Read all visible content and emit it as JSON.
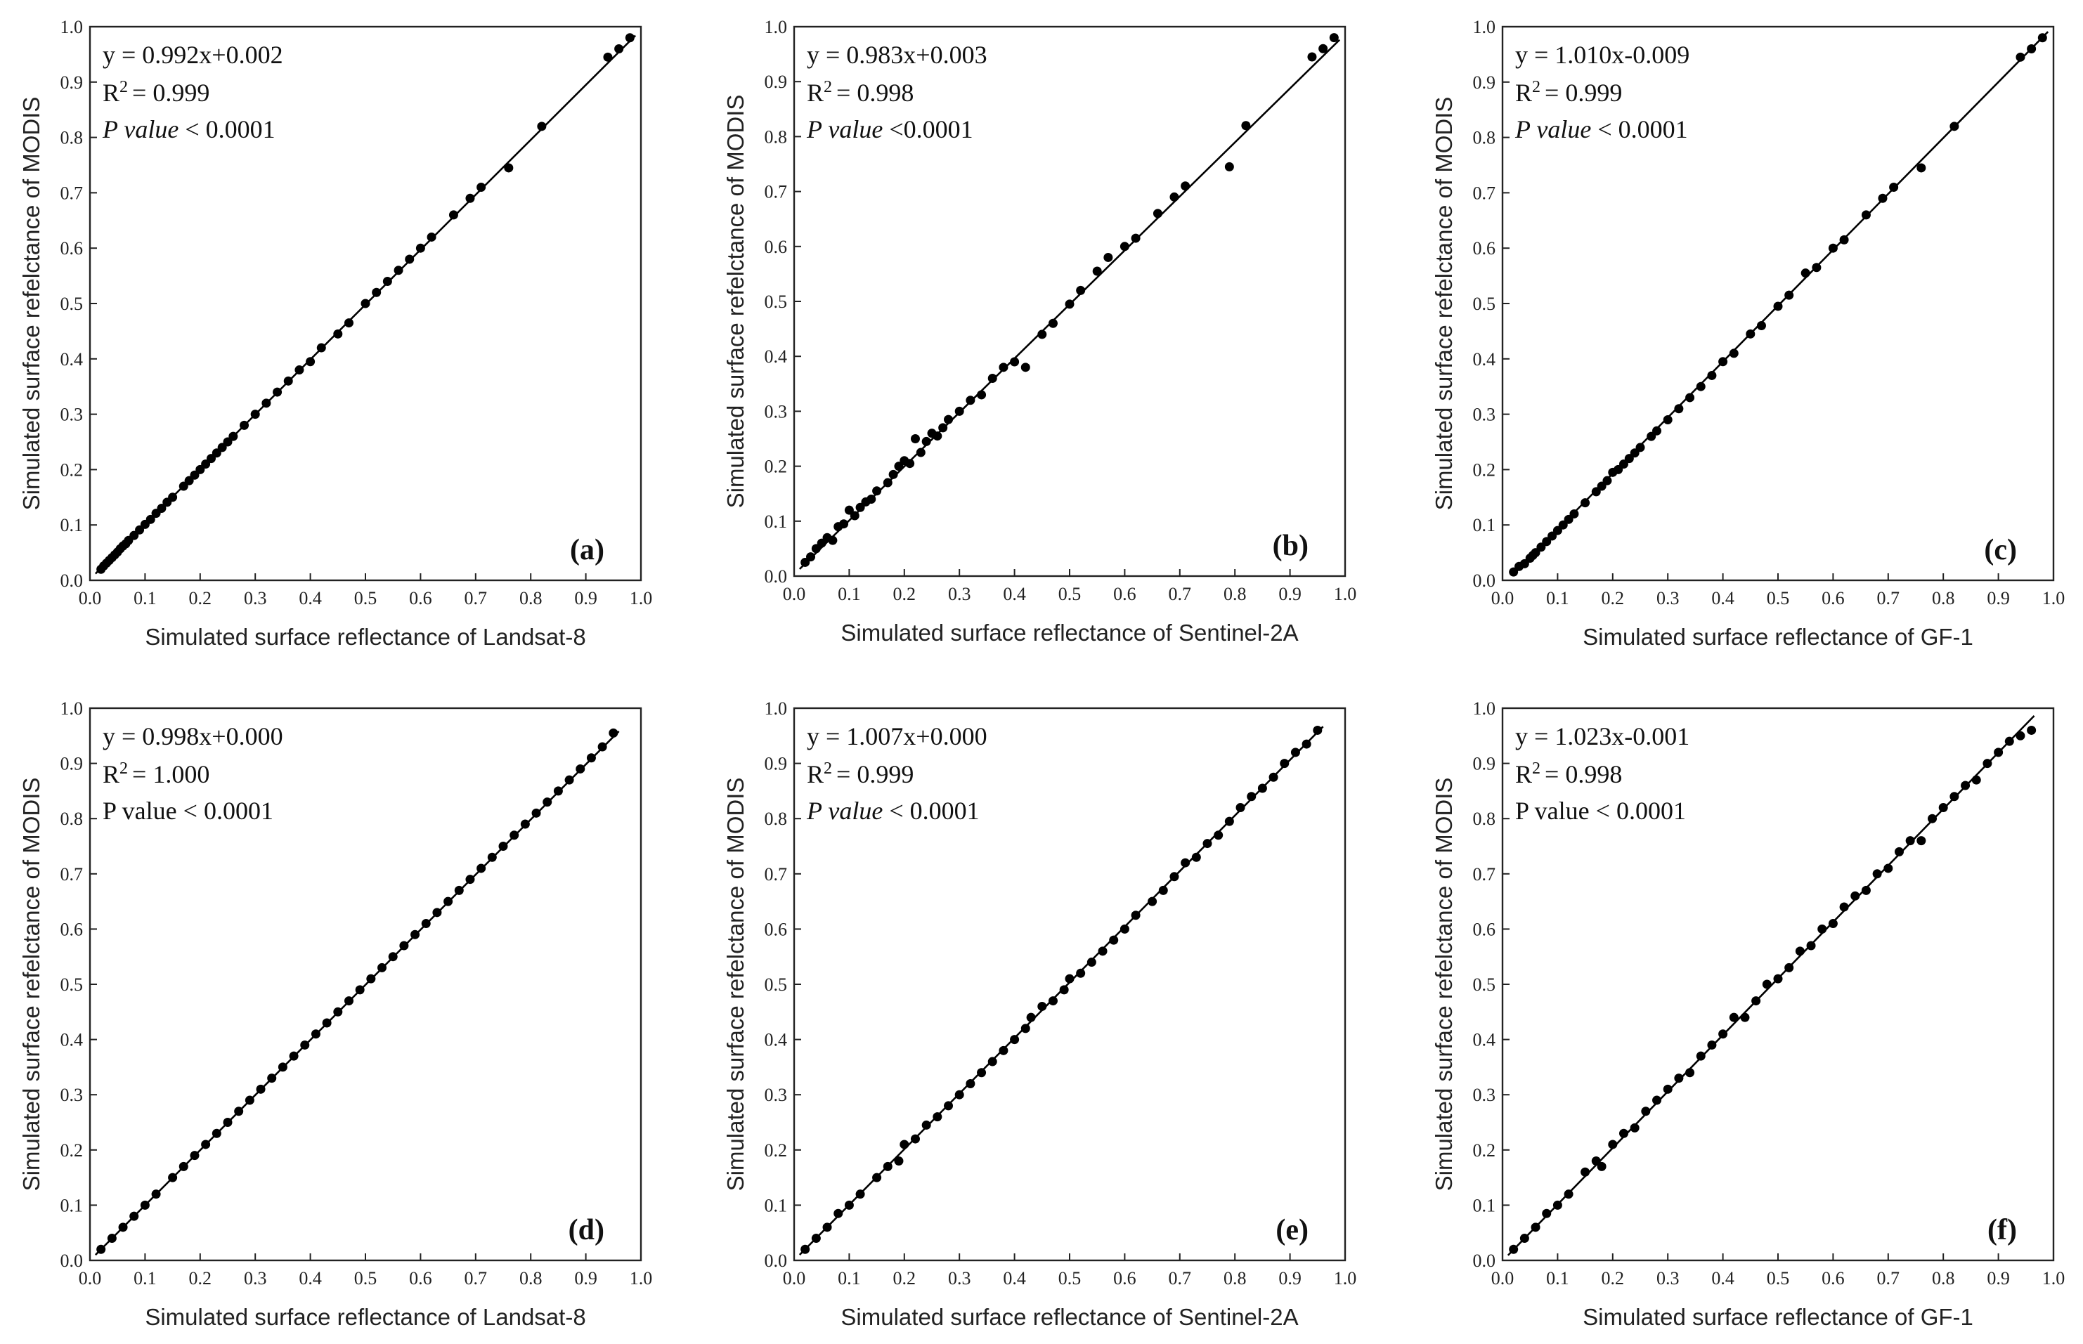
{
  "figure": {
    "ytitle": "Simulated surface refelctance of MODIS",
    "xticks": [
      "0.0",
      "0.1",
      "0.2",
      "0.3",
      "0.4",
      "0.5",
      "0.6",
      "0.7",
      "0.8",
      "0.9",
      "1.0"
    ],
    "yticks": [
      "0.0",
      "0.1",
      "0.2",
      "0.3",
      "0.4",
      "0.5",
      "0.6",
      "0.7",
      "0.8",
      "0.9",
      "1.0"
    ],
    "r2_label": "R",
    "r2_sup": "2"
  },
  "chart_data": [
    {
      "type": "scatter",
      "label": "(a)",
      "xlabel": "Simulated surface reflectance of Landsat-8",
      "ylabel": "Simulated surface refelctance of MODIS",
      "xlim": [
        0,
        1
      ],
      "ylim": [
        0,
        1
      ],
      "equation": "y = 0.992x+0.002",
      "r2_value": "= 0.999",
      "p_word": "P value",
      "p_rest": " < 0.0001",
      "p_italic": true,
      "fit": {
        "slope": 0.992,
        "intercept": 0.002,
        "x_range": [
          0.01,
          0.99
        ]
      },
      "x": [
        0.02,
        0.025,
        0.03,
        0.035,
        0.04,
        0.045,
        0.05,
        0.055,
        0.06,
        0.065,
        0.07,
        0.08,
        0.09,
        0.1,
        0.11,
        0.12,
        0.13,
        0.14,
        0.15,
        0.17,
        0.18,
        0.19,
        0.2,
        0.21,
        0.22,
        0.23,
        0.24,
        0.25,
        0.26,
        0.28,
        0.3,
        0.32,
        0.34,
        0.36,
        0.38,
        0.4,
        0.42,
        0.45,
        0.47,
        0.5,
        0.52,
        0.54,
        0.56,
        0.58,
        0.6,
        0.62,
        0.66,
        0.69,
        0.71,
        0.76,
        0.82,
        0.94,
        0.96,
        0.98
      ],
      "y": [
        0.02,
        0.026,
        0.031,
        0.036,
        0.041,
        0.046,
        0.051,
        0.057,
        0.062,
        0.066,
        0.072,
        0.081,
        0.091,
        0.101,
        0.11,
        0.121,
        0.13,
        0.141,
        0.15,
        0.17,
        0.18,
        0.19,
        0.2,
        0.21,
        0.22,
        0.23,
        0.24,
        0.25,
        0.26,
        0.28,
        0.3,
        0.32,
        0.34,
        0.36,
        0.38,
        0.395,
        0.42,
        0.445,
        0.465,
        0.5,
        0.52,
        0.54,
        0.56,
        0.58,
        0.6,
        0.62,
        0.66,
        0.69,
        0.71,
        0.745,
        0.82,
        0.945,
        0.96,
        0.98
      ]
    },
    {
      "type": "scatter",
      "label": "(b)",
      "xlabel": "Simulated surface reflectance of Sentinel-2A",
      "ylabel": "Simulated surface refelctance of MODIS",
      "xlim": [
        0,
        1
      ],
      "ylim": [
        0,
        1
      ],
      "equation": "y = 0.983x+0.003",
      "r2_value": "= 0.998",
      "p_word": "P value",
      "p_rest": " <0.0001",
      "p_italic": true,
      "fit": {
        "slope": 0.983,
        "intercept": 0.003,
        "x_range": [
          0.01,
          0.99
        ]
      },
      "x": [
        0.02,
        0.03,
        0.04,
        0.05,
        0.06,
        0.07,
        0.08,
        0.09,
        0.1,
        0.11,
        0.12,
        0.13,
        0.14,
        0.15,
        0.17,
        0.18,
        0.19,
        0.2,
        0.21,
        0.22,
        0.23,
        0.24,
        0.25,
        0.26,
        0.27,
        0.28,
        0.3,
        0.32,
        0.34,
        0.36,
        0.38,
        0.4,
        0.42,
        0.45,
        0.47,
        0.5,
        0.52,
        0.55,
        0.57,
        0.6,
        0.62,
        0.66,
        0.69,
        0.71,
        0.79,
        0.82,
        0.94,
        0.96,
        0.98
      ],
      "y": [
        0.025,
        0.035,
        0.05,
        0.06,
        0.07,
        0.065,
        0.09,
        0.095,
        0.12,
        0.11,
        0.125,
        0.135,
        0.14,
        0.155,
        0.17,
        0.185,
        0.2,
        0.21,
        0.205,
        0.25,
        0.225,
        0.245,
        0.26,
        0.255,
        0.27,
        0.285,
        0.3,
        0.32,
        0.33,
        0.36,
        0.38,
        0.39,
        0.38,
        0.44,
        0.46,
        0.495,
        0.52,
        0.555,
        0.58,
        0.6,
        0.615,
        0.66,
        0.69,
        0.71,
        0.745,
        0.82,
        0.945,
        0.96,
        0.98
      ]
    },
    {
      "type": "scatter",
      "label": "(c)",
      "xlabel": "Simulated surface reflectance of GF-1",
      "ylabel": "Simulated surface refelctance of MODIS",
      "xlim": [
        0,
        1
      ],
      "ylim": [
        0,
        1
      ],
      "equation": "y = 1.010x-0.009",
      "r2_value": "= 0.999",
      "p_word": "P value",
      "p_rest": " < 0.0001",
      "p_italic": true,
      "fit": {
        "slope": 1.01,
        "intercept": -0.009,
        "x_range": [
          0.02,
          0.99
        ]
      },
      "x": [
        0.02,
        0.03,
        0.04,
        0.05,
        0.055,
        0.06,
        0.07,
        0.08,
        0.09,
        0.1,
        0.11,
        0.12,
        0.13,
        0.15,
        0.17,
        0.18,
        0.19,
        0.2,
        0.21,
        0.22,
        0.23,
        0.24,
        0.25,
        0.27,
        0.28,
        0.3,
        0.32,
        0.34,
        0.36,
        0.38,
        0.4,
        0.42,
        0.45,
        0.47,
        0.5,
        0.52,
        0.55,
        0.57,
        0.6,
        0.62,
        0.66,
        0.69,
        0.71,
        0.76,
        0.82,
        0.94,
        0.96,
        0.98
      ],
      "y": [
        0.015,
        0.025,
        0.03,
        0.04,
        0.045,
        0.05,
        0.06,
        0.07,
        0.08,
        0.09,
        0.1,
        0.11,
        0.12,
        0.14,
        0.16,
        0.17,
        0.18,
        0.195,
        0.2,
        0.21,
        0.22,
        0.23,
        0.24,
        0.26,
        0.27,
        0.29,
        0.31,
        0.33,
        0.35,
        0.37,
        0.395,
        0.41,
        0.445,
        0.46,
        0.495,
        0.515,
        0.555,
        0.565,
        0.6,
        0.615,
        0.66,
        0.69,
        0.71,
        0.745,
        0.82,
        0.945,
        0.96,
        0.98
      ]
    },
    {
      "type": "scatter",
      "label": "(d)",
      "xlabel": "Simulated surface reflectance of Landsat-8",
      "ylabel": "Simulated surface refelctance of MODIS",
      "xlim": [
        0,
        1
      ],
      "ylim": [
        0,
        1
      ],
      "equation": "y = 0.998x+0.000",
      "r2_value": "= 1.000",
      "p_word": "P value",
      "p_rest": " < 0.0001",
      "p_italic": false,
      "fit": {
        "slope": 0.998,
        "intercept": 0.0,
        "x_range": [
          0.01,
          0.96
        ]
      },
      "x": [
        0.02,
        0.04,
        0.06,
        0.08,
        0.1,
        0.12,
        0.15,
        0.17,
        0.19,
        0.21,
        0.23,
        0.25,
        0.27,
        0.29,
        0.31,
        0.33,
        0.35,
        0.37,
        0.39,
        0.41,
        0.43,
        0.45,
        0.47,
        0.49,
        0.51,
        0.53,
        0.55,
        0.57,
        0.59,
        0.61,
        0.63,
        0.65,
        0.67,
        0.69,
        0.71,
        0.73,
        0.75,
        0.77,
        0.79,
        0.81,
        0.83,
        0.85,
        0.87,
        0.89,
        0.91,
        0.93,
        0.95
      ],
      "y": [
        0.02,
        0.04,
        0.06,
        0.08,
        0.1,
        0.12,
        0.15,
        0.17,
        0.19,
        0.21,
        0.23,
        0.25,
        0.27,
        0.29,
        0.31,
        0.33,
        0.35,
        0.37,
        0.39,
        0.41,
        0.43,
        0.45,
        0.47,
        0.49,
        0.51,
        0.53,
        0.55,
        0.57,
        0.59,
        0.61,
        0.63,
        0.65,
        0.67,
        0.69,
        0.71,
        0.73,
        0.75,
        0.77,
        0.79,
        0.81,
        0.83,
        0.85,
        0.87,
        0.89,
        0.91,
        0.93,
        0.955
      ]
    },
    {
      "type": "scatter",
      "label": "(e)",
      "xlabel": "Simulated surface reflectance of Sentinel-2A",
      "ylabel": "Simulated surface refelctance of MODIS",
      "xlim": [
        0,
        1
      ],
      "ylim": [
        0,
        1
      ],
      "equation": "y = 1.007x+0.000",
      "r2_value": "= 0.999",
      "p_word": "P value",
      "p_rest": " < 0.0001",
      "p_italic": true,
      "fit": {
        "slope": 1.007,
        "intercept": 0.0,
        "x_range": [
          0.01,
          0.96
        ]
      },
      "x": [
        0.02,
        0.04,
        0.06,
        0.08,
        0.1,
        0.12,
        0.15,
        0.17,
        0.19,
        0.2,
        0.22,
        0.24,
        0.26,
        0.28,
        0.3,
        0.32,
        0.34,
        0.36,
        0.38,
        0.4,
        0.42,
        0.43,
        0.45,
        0.47,
        0.49,
        0.5,
        0.52,
        0.54,
        0.56,
        0.58,
        0.6,
        0.62,
        0.65,
        0.67,
        0.69,
        0.71,
        0.73,
        0.75,
        0.77,
        0.79,
        0.81,
        0.83,
        0.85,
        0.87,
        0.89,
        0.91,
        0.93,
        0.95
      ],
      "y": [
        0.02,
        0.04,
        0.06,
        0.085,
        0.1,
        0.12,
        0.15,
        0.17,
        0.18,
        0.21,
        0.22,
        0.245,
        0.26,
        0.28,
        0.3,
        0.32,
        0.34,
        0.36,
        0.38,
        0.4,
        0.42,
        0.44,
        0.46,
        0.47,
        0.49,
        0.51,
        0.52,
        0.54,
        0.56,
        0.58,
        0.6,
        0.625,
        0.65,
        0.67,
        0.695,
        0.72,
        0.73,
        0.755,
        0.77,
        0.795,
        0.82,
        0.84,
        0.855,
        0.875,
        0.9,
        0.92,
        0.935,
        0.96
      ]
    },
    {
      "type": "scatter",
      "label": "(f)",
      "xlabel": "Simulated surface reflectance of GF-1",
      "ylabel": "Simulated surface refelctance of MODIS",
      "xlim": [
        0,
        1
      ],
      "ylim": [
        0,
        1
      ],
      "equation": "y = 1.023x-0.001",
      "r2_value": "= 0.998",
      "p_word": "P value",
      "p_rest": " < 0.0001",
      "p_italic": false,
      "fit": {
        "slope": 1.023,
        "intercept": -0.001,
        "x_range": [
          0.01,
          0.965
        ]
      },
      "x": [
        0.02,
        0.04,
        0.06,
        0.08,
        0.1,
        0.12,
        0.15,
        0.17,
        0.18,
        0.2,
        0.22,
        0.24,
        0.26,
        0.28,
        0.3,
        0.32,
        0.34,
        0.36,
        0.38,
        0.4,
        0.42,
        0.44,
        0.46,
        0.48,
        0.5,
        0.52,
        0.54,
        0.56,
        0.58,
        0.6,
        0.62,
        0.64,
        0.66,
        0.68,
        0.7,
        0.72,
        0.74,
        0.76,
        0.78,
        0.8,
        0.82,
        0.84,
        0.86,
        0.88,
        0.9,
        0.92,
        0.94,
        0.96
      ],
      "y": [
        0.02,
        0.04,
        0.06,
        0.085,
        0.1,
        0.12,
        0.16,
        0.18,
        0.17,
        0.21,
        0.23,
        0.24,
        0.27,
        0.29,
        0.31,
        0.33,
        0.34,
        0.37,
        0.39,
        0.41,
        0.44,
        0.44,
        0.47,
        0.5,
        0.51,
        0.53,
        0.56,
        0.57,
        0.6,
        0.61,
        0.64,
        0.66,
        0.67,
        0.7,
        0.71,
        0.74,
        0.76,
        0.76,
        0.8,
        0.82,
        0.84,
        0.86,
        0.87,
        0.9,
        0.92,
        0.94,
        0.95,
        0.96
      ]
    }
  ]
}
